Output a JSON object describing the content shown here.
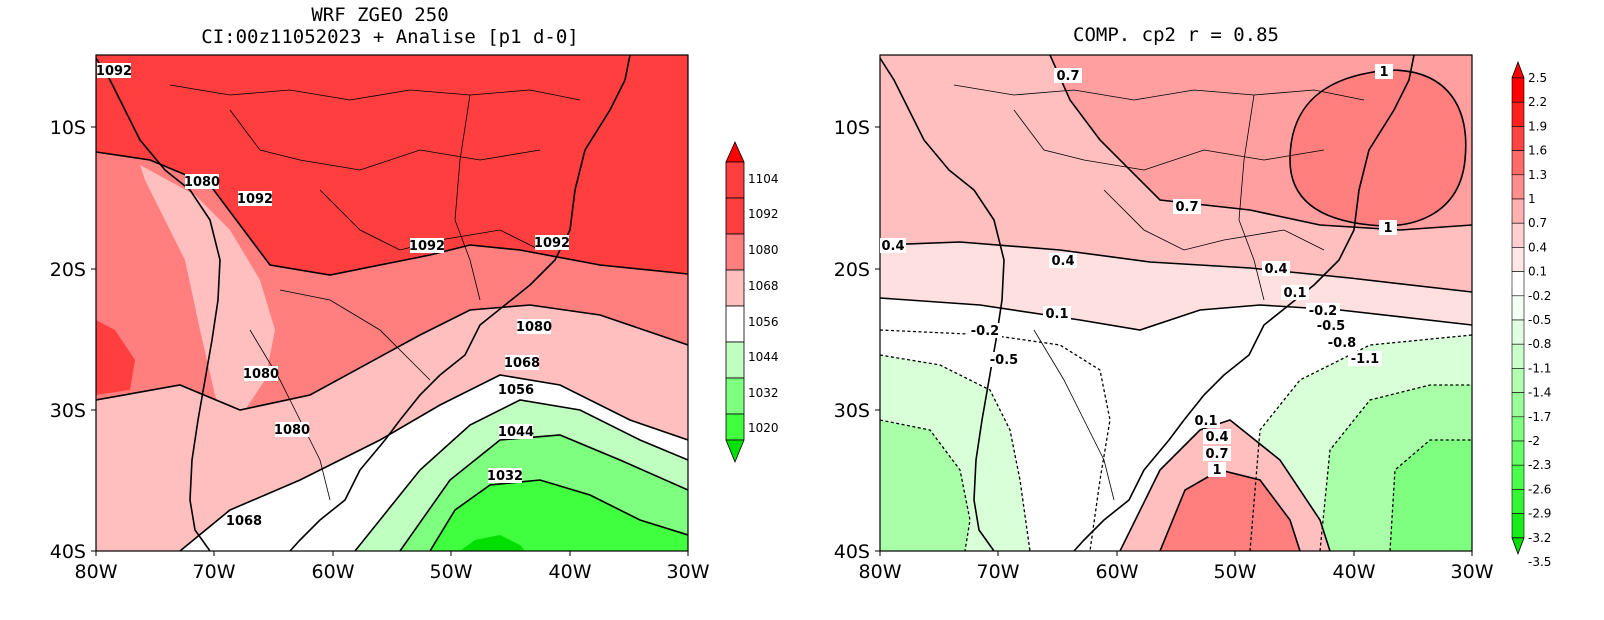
{
  "left_panel": {
    "title_line1": "WRF ZGEO 250",
    "title_line2": "CI:00z11052023 + Analise  [p1 d-0]",
    "x_ticks": [
      "80W",
      "70W",
      "60W",
      "50W",
      "40W",
      "30W"
    ],
    "y_ticks": [
      "10S",
      "20S",
      "30S",
      "40S"
    ],
    "contour_labels": [
      "1092",
      "1080",
      "1092",
      "1092",
      "1092",
      "1080",
      "1068",
      "1056",
      "1044",
      "1032",
      "1080",
      "1080",
      "1068"
    ],
    "colorbar": [
      "1104",
      "1092",
      "1080",
      "1068",
      "1056",
      "1044",
      "1032",
      "1020"
    ]
  },
  "right_panel": {
    "title": "COMP. cp2  r =  0.85",
    "x_ticks": [
      "80W",
      "70W",
      "60W",
      "50W",
      "40W",
      "30W"
    ],
    "y_ticks": [
      "10S",
      "20S",
      "30S",
      "40S"
    ],
    "contour_labels": [
      "0.7",
      "1",
      "0.7",
      "1",
      "0.4",
      "0.4",
      "0.4",
      "0.1",
      "0.1",
      "-0.2",
      "-0.2",
      "-0.5",
      "-0.5",
      "-0.8",
      "-1.1",
      "0.1",
      "0.4",
      "0.7",
      "1"
    ],
    "colorbar": [
      "2.5",
      "2.2",
      "1.9",
      "1.6",
      "1.3",
      "1",
      "0.7",
      "0.4",
      "0.1",
      "-0.2",
      "-0.5",
      "-0.8",
      "-1.1",
      "-1.4",
      "-1.7",
      "-2",
      "-2.3",
      "-2.6",
      "-2.9",
      "-3.2",
      "-3.5"
    ]
  },
  "colors": {
    "red_dark": "#ff3f3f",
    "red_med": "#ff7f7f",
    "red_light": "#ffbfbf",
    "white": "#ffffff",
    "green_light": "#bfffbf",
    "green_med": "#7fff7f",
    "green_dark": "#3fff3f",
    "green_full": "#00e000"
  }
}
